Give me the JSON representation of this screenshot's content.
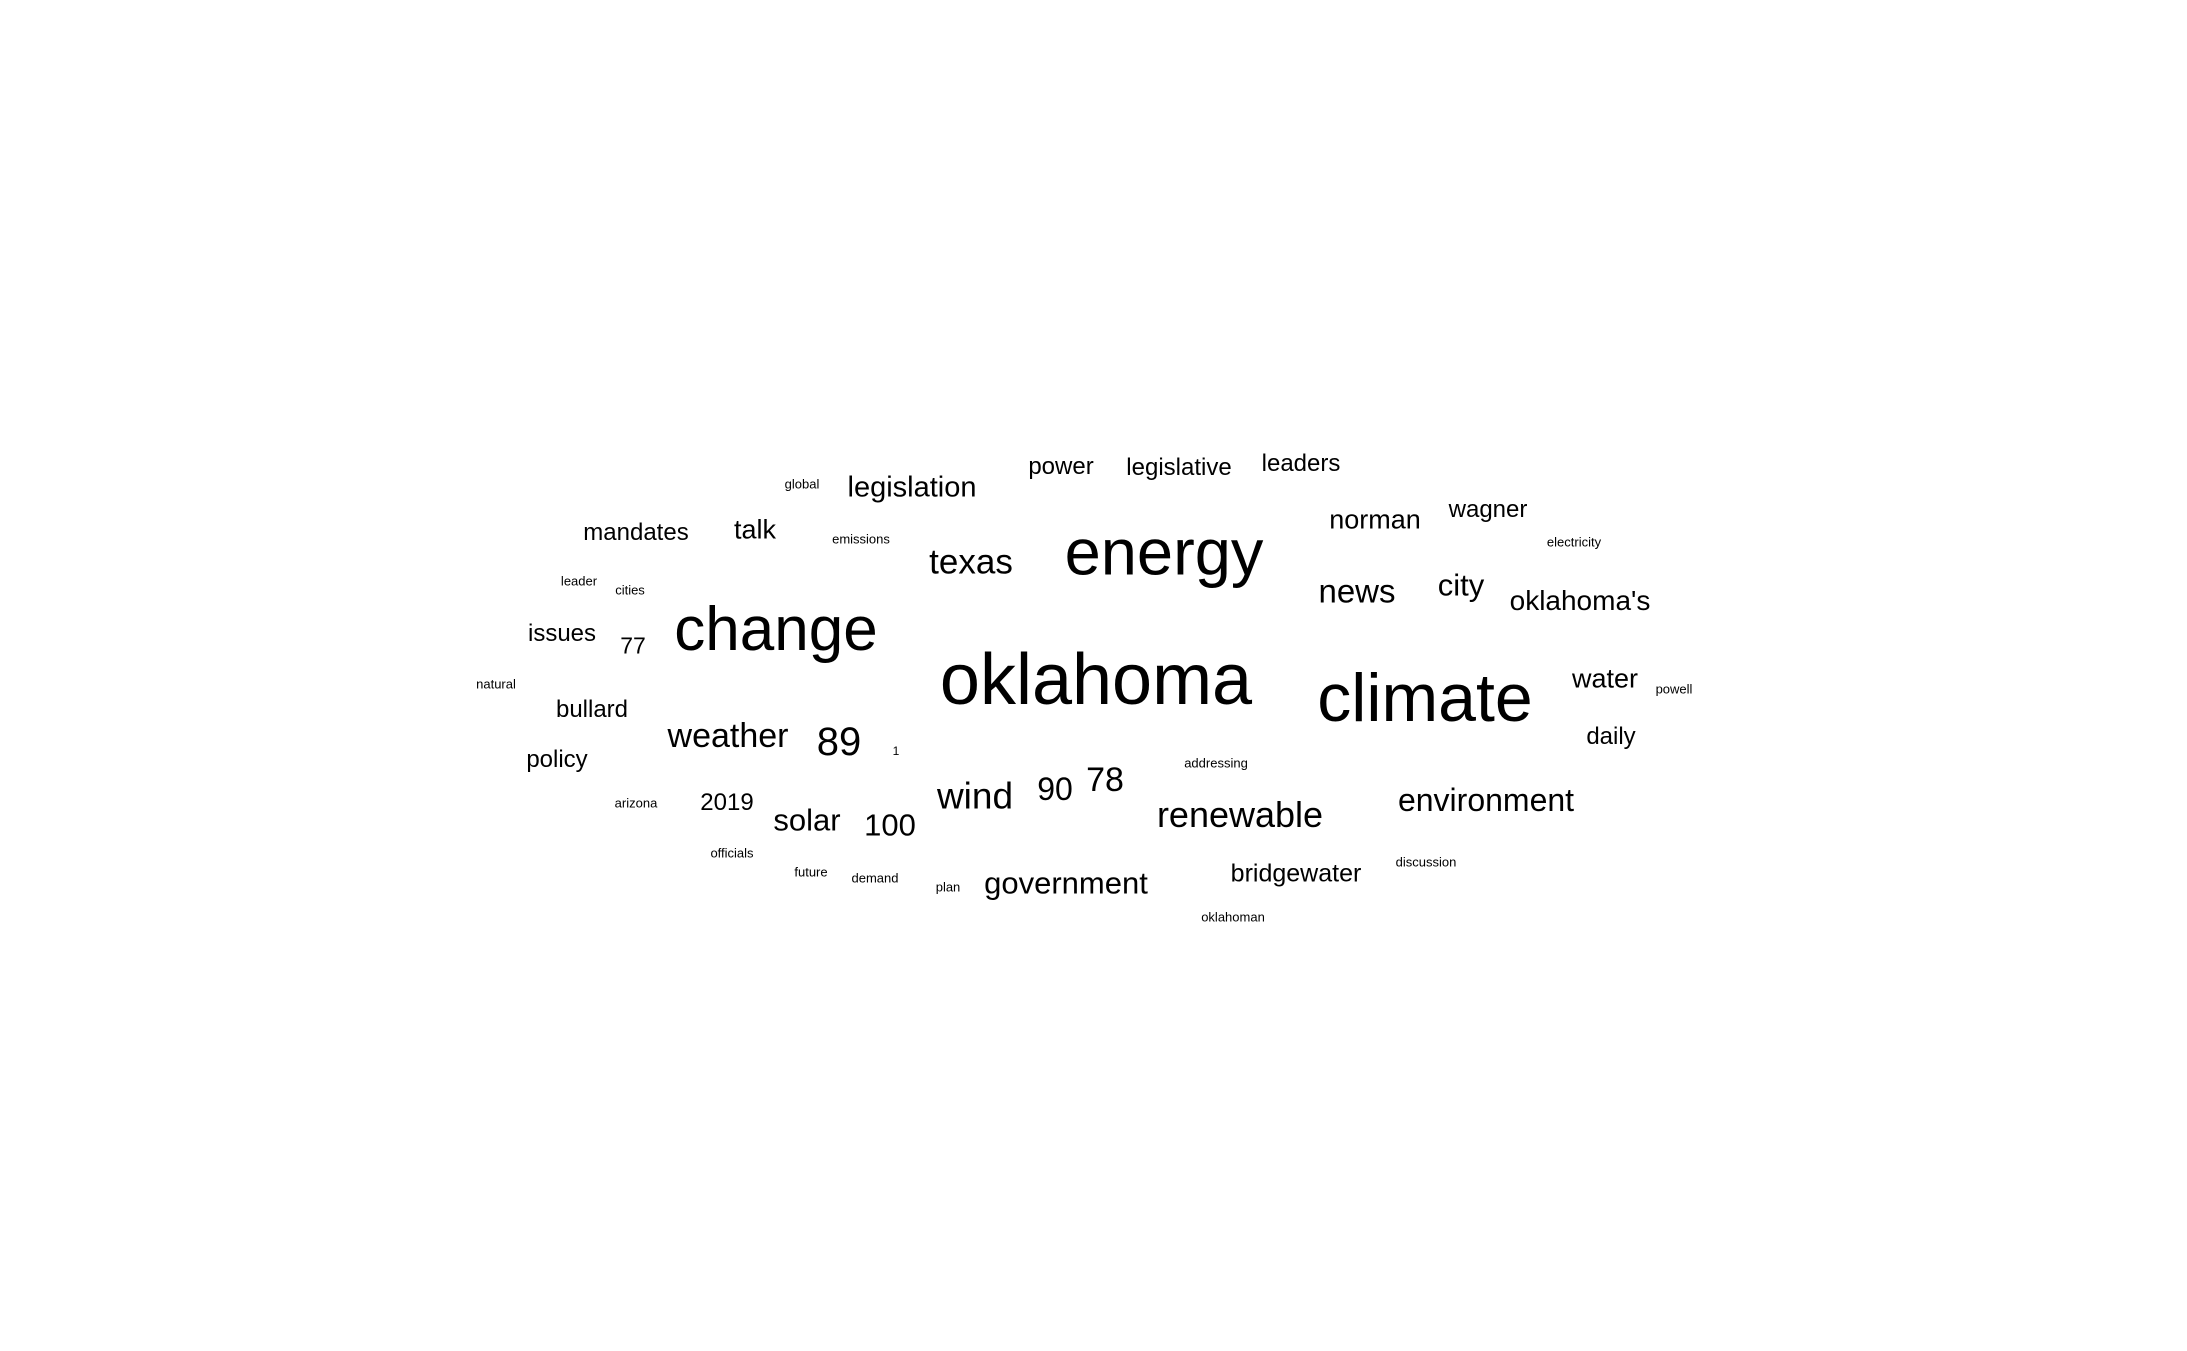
{
  "chart_data": {
    "type": "wordcloud",
    "text_color": "#000000",
    "background": "#ffffff",
    "words": [
      {
        "text": "oklahoma",
        "weight": 100
      },
      {
        "text": "climate",
        "weight": 94
      },
      {
        "text": "energy",
        "weight": 90
      },
      {
        "text": "change",
        "weight": 86
      },
      {
        "text": "89",
        "weight": 55
      },
      {
        "text": "wind",
        "weight": 52
      },
      {
        "text": "renewable",
        "weight": 50
      },
      {
        "text": "texas",
        "weight": 49
      },
      {
        "text": "78",
        "weight": 47
      },
      {
        "text": "weather",
        "weight": 47
      },
      {
        "text": "news",
        "weight": 46
      },
      {
        "text": "90",
        "weight": 45
      },
      {
        "text": "environment",
        "weight": 44
      },
      {
        "text": "city",
        "weight": 43
      },
      {
        "text": "government",
        "weight": 43
      },
      {
        "text": "100",
        "weight": 43
      },
      {
        "text": "solar",
        "weight": 43
      },
      {
        "text": "legislation",
        "weight": 40
      },
      {
        "text": "oklahoma's",
        "weight": 39
      },
      {
        "text": "norman",
        "weight": 38
      },
      {
        "text": "water",
        "weight": 37
      },
      {
        "text": "talk",
        "weight": 37
      },
      {
        "text": "bridgewater",
        "weight": 35
      },
      {
        "text": "mandates",
        "weight": 34
      },
      {
        "text": "power",
        "weight": 34
      },
      {
        "text": "legislative",
        "weight": 34
      },
      {
        "text": "leaders",
        "weight": 34
      },
      {
        "text": "wagner",
        "weight": 34
      },
      {
        "text": "daily",
        "weight": 34
      },
      {
        "text": "bullard",
        "weight": 34
      },
      {
        "text": "issues",
        "weight": 33
      },
      {
        "text": "policy",
        "weight": 33
      },
      {
        "text": "2019",
        "weight": 33
      },
      {
        "text": "77",
        "weight": 32
      },
      {
        "text": "global",
        "weight": 12
      },
      {
        "text": "emissions",
        "weight": 12
      },
      {
        "text": "electricity",
        "weight": 12
      },
      {
        "text": "leader",
        "weight": 12
      },
      {
        "text": "cities",
        "weight": 12
      },
      {
        "text": "natural",
        "weight": 12
      },
      {
        "text": "powell",
        "weight": 12
      },
      {
        "text": "1",
        "weight": 11
      },
      {
        "text": "addressing",
        "weight": 12
      },
      {
        "text": "arizona",
        "weight": 12
      },
      {
        "text": "officials",
        "weight": 12
      },
      {
        "text": "future",
        "weight": 12
      },
      {
        "text": "demand",
        "weight": 12
      },
      {
        "text": "plan",
        "weight": 12
      },
      {
        "text": "discussion",
        "weight": 12
      },
      {
        "text": "oklahoman",
        "weight": 12
      }
    ]
  }
}
